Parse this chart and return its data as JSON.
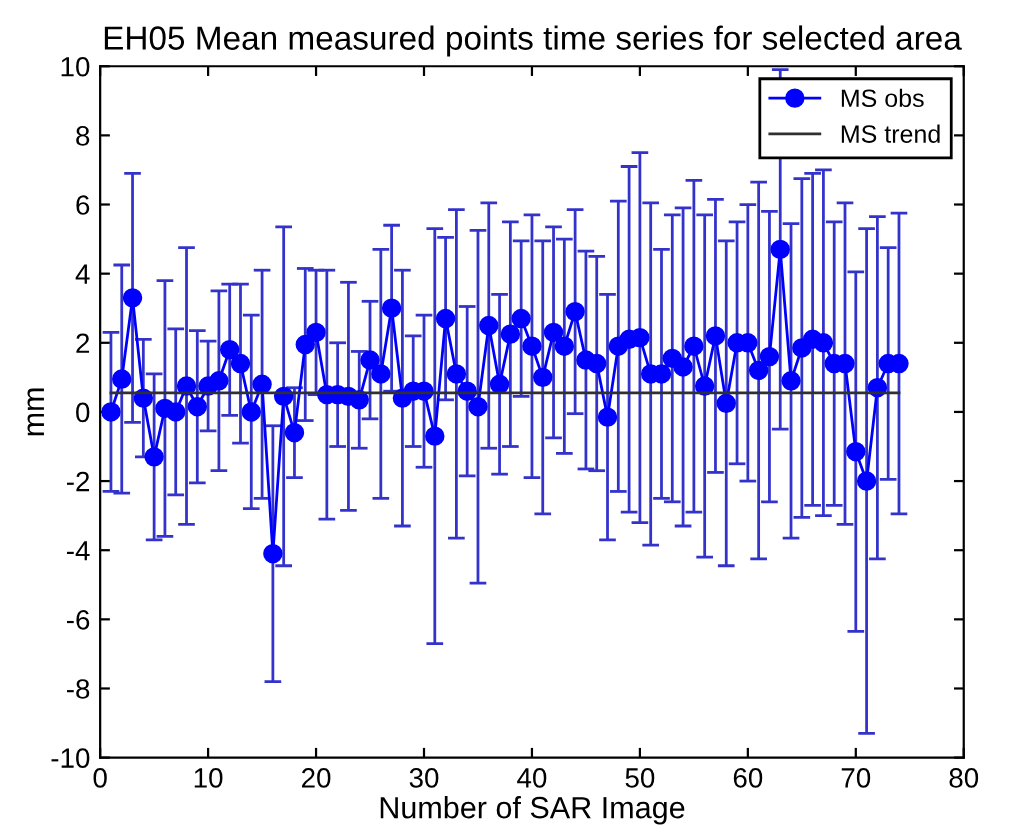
{
  "chart_data": {
    "type": "line",
    "title": "EH05 Mean measured points time series for selected area",
    "xlabel": "Number of SAR Image",
    "ylabel": "mm",
    "xlim": [
      0,
      80
    ],
    "xticks": [
      0,
      10,
      20,
      30,
      40,
      50,
      60,
      70,
      80
    ],
    "ylim": [
      -10,
      10
    ],
    "yticks": [
      -10,
      -8,
      -6,
      -4,
      -2,
      0,
      2,
      4,
      6,
      8,
      10
    ],
    "grid": false,
    "legend": "top right",
    "series": [
      {
        "name": "MS obs",
        "color": "#0000ff",
        "marker": "circle",
        "x": [
          1,
          2,
          3,
          4,
          5,
          6,
          7,
          8,
          9,
          10,
          11,
          12,
          13,
          14,
          15,
          16,
          17,
          18,
          19,
          20,
          21,
          22,
          23,
          24,
          25,
          26,
          27,
          28,
          29,
          30,
          31,
          32,
          33,
          34,
          35,
          36,
          37,
          38,
          39,
          40,
          41,
          42,
          43,
          44,
          45,
          46,
          47,
          48,
          49,
          50,
          51,
          52,
          53,
          54,
          55,
          56,
          57,
          58,
          59,
          60,
          61,
          62,
          63,
          64,
          65,
          66,
          67,
          68,
          69,
          70,
          71,
          72,
          73,
          74
        ],
        "values": [
          0.0,
          0.95,
          3.3,
          0.4,
          -1.3,
          0.1,
          0.0,
          0.75,
          0.15,
          0.75,
          0.9,
          1.8,
          1.4,
          0.0,
          0.8,
          -4.1,
          0.45,
          -0.6,
          1.95,
          2.3,
          0.5,
          0.5,
          0.45,
          0.35,
          1.5,
          1.1,
          3.0,
          0.4,
          0.6,
          0.6,
          -0.7,
          2.7,
          1.1,
          0.6,
          0.15,
          2.5,
          0.8,
          2.25,
          2.7,
          1.9,
          1.0,
          2.3,
          1.9,
          2.9,
          1.5,
          1.4,
          -0.15,
          1.9,
          2.1,
          2.15,
          1.1,
          1.1,
          1.55,
          1.3,
          1.9,
          0.75,
          2.2,
          0.25,
          2.0,
          2.0,
          1.2,
          1.6,
          4.7,
          0.9,
          1.85,
          2.1,
          2.0,
          1.4,
          1.4,
          -1.15,
          -2.0,
          0.7,
          1.4,
          1.4
        ],
        "errors": [
          2.3,
          3.3,
          3.6,
          1.7,
          2.4,
          3.7,
          2.4,
          4.0,
          2.2,
          1.3,
          2.6,
          1.9,
          2.3,
          2.8,
          3.3,
          3.7,
          4.9,
          1.3,
          2.2,
          1.8,
          3.6,
          1.5,
          3.3,
          1.4,
          1.7,
          3.6,
          2.4,
          3.7,
          1.6,
          2.2,
          6.0,
          2.35,
          4.75,
          2.45,
          5.1,
          3.55,
          2.6,
          3.25,
          2.25,
          3.8,
          3.95,
          3.05,
          3.1,
          2.95,
          3.15,
          3.1,
          3.55,
          4.2,
          5.0,
          5.35,
          4.95,
          3.6,
          4.15,
          4.6,
          4.8,
          4.95,
          3.95,
          4.7,
          3.5,
          4.0,
          5.45,
          4.2,
          5.2,
          4.55,
          4.9,
          4.8,
          5.0,
          4.1,
          4.65,
          5.2,
          7.3,
          4.95,
          3.35,
          4.35
        ]
      },
      {
        "name": "MS trend",
        "color": "#303030",
        "marker": "none",
        "x": [
          1,
          74
        ],
        "values": [
          0.55,
          0.55
        ]
      }
    ]
  }
}
